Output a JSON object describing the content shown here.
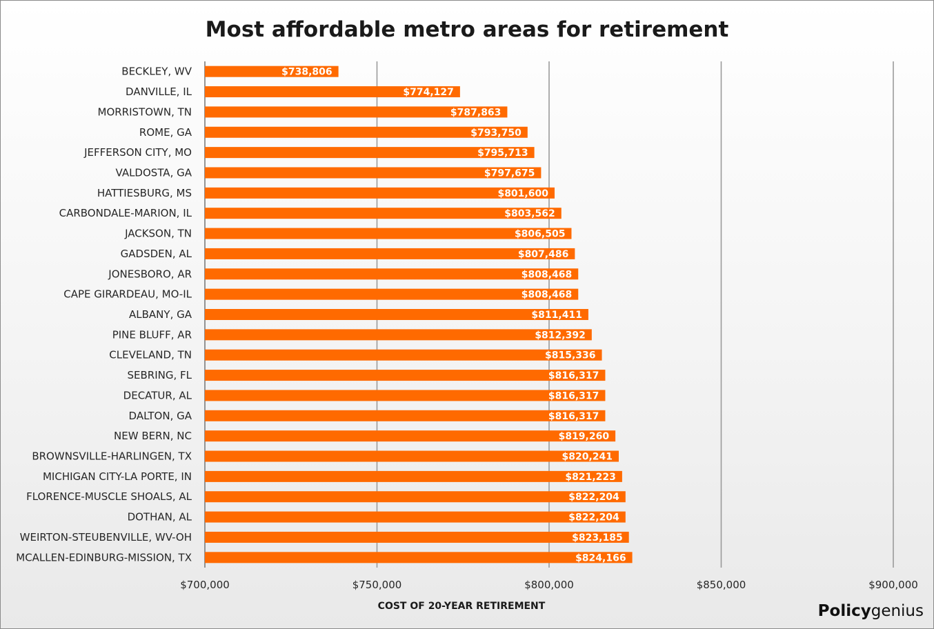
{
  "chart_data": {
    "type": "bar",
    "orientation": "horizontal",
    "title": "Most affordable metro areas for retirement",
    "xlabel": "COST OF 20-YEAR RETIREMENT",
    "ylabel": "",
    "xlim": [
      700000,
      900000
    ],
    "ticks": [
      700000,
      750000,
      800000,
      850000,
      900000
    ],
    "tick_labels": [
      "$700,000",
      "$750,000",
      "$800,000",
      "$850,000",
      "$900,000"
    ],
    "grid": true,
    "bar_color": "#FF6A00",
    "categories": [
      "BECKLEY, WV",
      "DANVILLE, IL",
      "MORRISTOWN, TN",
      "ROME, GA",
      "JEFFERSON CITY, MO",
      "VALDOSTA, GA",
      "HATTIESBURG, MS",
      "CARBONDALE-MARION, IL",
      "JACKSON, TN",
      "GADSDEN, AL",
      "JONESBORO, AR",
      "CAPE GIRARDEAU, MO-IL",
      "ALBANY, GA",
      "PINE BLUFF, AR",
      "CLEVELAND, TN",
      "SEBRING, FL",
      "DECATUR, AL",
      "DALTON, GA",
      "NEW BERN, NC",
      "BROWNSVILLE-HARLINGEN, TX",
      "MICHIGAN CITY-LA PORTE, IN",
      "FLORENCE-MUSCLE SHOALS, AL",
      "DOTHAN, AL",
      "WEIRTON-STEUBENVILLE, WV-OH",
      "MCALLEN-EDINBURG-MISSION, TX"
    ],
    "values": [
      738806,
      774127,
      787863,
      793750,
      795713,
      797675,
      801600,
      803562,
      806505,
      807486,
      808468,
      808468,
      811411,
      812392,
      815336,
      816317,
      816317,
      816317,
      819260,
      820241,
      821223,
      822204,
      822204,
      823185,
      824166
    ],
    "value_labels": [
      "$738,806",
      "$774,127",
      "$787,863",
      "$793,750",
      "$795,713",
      "$797,675",
      "$801,600",
      "$803,562",
      "$806,505",
      "$807,486",
      "$808,468",
      "$808,468",
      "$811,411",
      "$812,392",
      "$815,336",
      "$816,317",
      "$816,317",
      "$816,317",
      "$819,260",
      "$820,241",
      "$821,223",
      "$822,204",
      "$822,204",
      "$823,185",
      "$824,166"
    ]
  },
  "branding": {
    "logo_bold": "Policy",
    "logo_light": "genius"
  }
}
